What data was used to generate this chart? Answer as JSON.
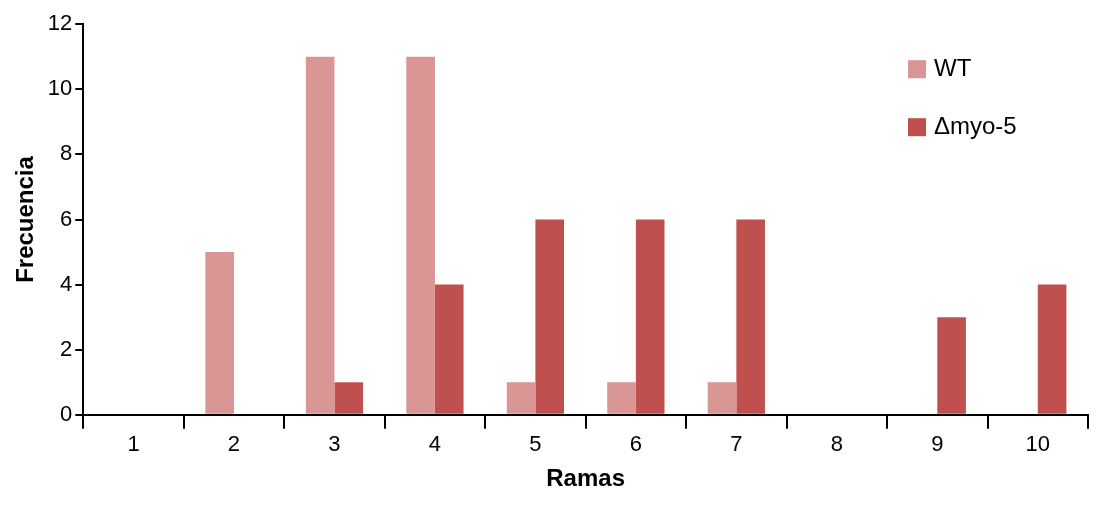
{
  "chart_data": {
    "type": "bar",
    "xlabel": "Ramas",
    "ylabel": "Frecuencia",
    "categories": [
      "1",
      "2",
      "3",
      "4",
      "5",
      "6",
      "7",
      "8",
      "9",
      "10"
    ],
    "series": [
      {
        "name": "WT",
        "color": "#d99694",
        "values": [
          0,
          5,
          11,
          11,
          1,
          1,
          1,
          0,
          0,
          0
        ]
      },
      {
        "name": "Δmyo-5",
        "color": "#c0504d",
        "values": [
          0,
          0,
          1,
          4,
          6,
          6,
          6,
          0,
          3,
          4
        ]
      }
    ],
    "ylim": [
      0,
      12
    ],
    "yticks": [
      0,
      2,
      4,
      6,
      8,
      10,
      12
    ],
    "grid": false,
    "legend": "top right"
  }
}
